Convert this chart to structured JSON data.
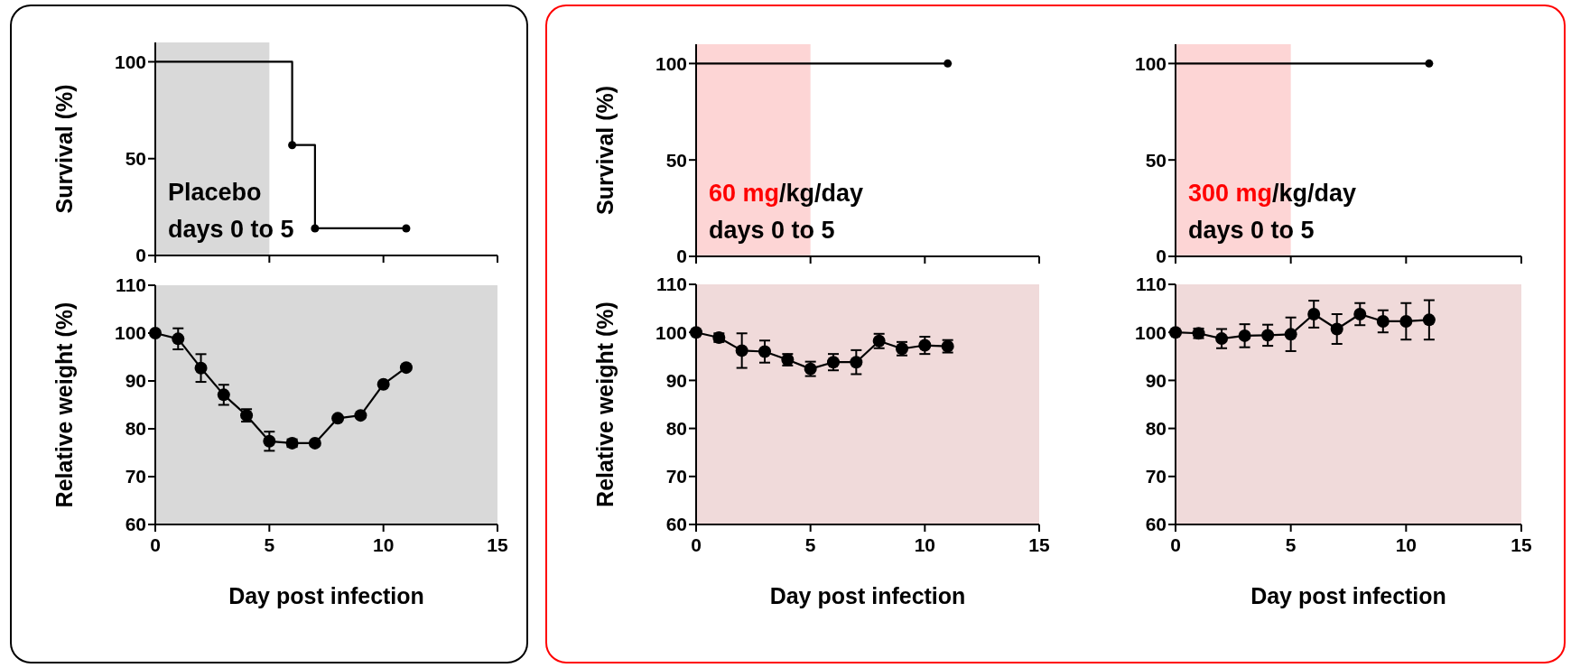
{
  "chart_data": [
    {
      "type": "step",
      "ylabel": "Survival (%)",
      "x": [
        0,
        6,
        7,
        11
      ],
      "series": [
        {
          "color": "#000000",
          "values": [
            100,
            57,
            14,
            14
          ]
        },
        {
          "type": "scatter",
          "color": "#000000",
          "x": [
            6,
            7,
            11
          ],
          "values": [
            57,
            14,
            14
          ]
        }
      ],
      "xlim": [
        0,
        15
      ],
      "xticks": [
        0,
        5,
        10,
        15
      ],
      "ylim": [
        0,
        110
      ],
      "yticks": [
        0,
        50,
        100
      ],
      "tick_labels": "y",
      "line_style": "solid",
      "bands": [
        {
          "axis": "x",
          "from": 0,
          "to": 5,
          "color": "#d9d9d9"
        }
      ],
      "annotations": [
        "Placebo",
        "days 0 to 5"
      ]
    },
    {
      "type": "step",
      "ylabel": "Survival (%)",
      "x": [
        0,
        11
      ],
      "series": [
        {
          "color": "#000000",
          "values": [
            100,
            100
          ]
        },
        {
          "type": "scatter",
          "color": "#000000",
          "x": [
            11
          ],
          "values": [
            100
          ]
        }
      ],
      "xlim": [
        0,
        15
      ],
      "xticks": [
        0,
        5,
        10,
        15
      ],
      "ylim": [
        0,
        110
      ],
      "yticks": [
        0,
        50,
        100
      ],
      "tick_labels": "y",
      "line_style": "solid",
      "bands": [
        {
          "axis": "x",
          "from": 0,
          "to": 5,
          "color": "#fdd5d5",
          "label": "60 mg"
        }
      ],
      "annotations": [
        "/kg/day",
        "days 0 to 5"
      ]
    },
    {
      "type": "step",
      "x": [
        0,
        11
      ],
      "series": [
        {
          "color": "#000000",
          "values": [
            100,
            100
          ]
        },
        {
          "type": "scatter",
          "color": "#000000",
          "x": [
            11
          ],
          "values": [
            100
          ]
        }
      ],
      "xlim": [
        0,
        15
      ],
      "xticks": [
        0,
        5,
        10,
        15
      ],
      "ylim": [
        0,
        110
      ],
      "yticks": [
        0,
        50,
        100
      ],
      "tick_labels": "y",
      "line_style": "solid",
      "bands": [
        {
          "axis": "x",
          "from": 0,
          "to": 5,
          "color": "#fdd5d5",
          "label": "300 mg"
        }
      ],
      "annotations": [
        "/kg/day",
        "days 0 to 5"
      ]
    },
    {
      "type": "line",
      "xlabel": "Day post infection",
      "ylabel": "Relative weight (%)",
      "x": [
        0,
        1,
        2,
        3,
        4,
        5,
        6,
        7,
        8,
        9,
        10,
        11
      ],
      "series": [
        {
          "color": "#000000",
          "values": [
            100,
            98.8,
            92.7,
            87.1,
            82.8,
            77.4,
            77.0,
            77.0,
            82.2,
            82.8,
            89.3,
            92.8
          ],
          "errors": [
            null,
            2.2,
            2.9,
            2.1,
            1.3,
            2.0,
            0.8,
            null,
            null,
            null,
            null,
            null
          ]
        }
      ],
      "xlim": [
        0,
        15
      ],
      "xticks": [
        0,
        5,
        10,
        15
      ],
      "ylim": [
        60,
        110
      ],
      "yticks": [
        60,
        70,
        80,
        90,
        100,
        110
      ],
      "marker": "circle",
      "line_style": "solid",
      "bands": [
        {
          "axis": "x",
          "from": 0,
          "to": 15,
          "color": "#d9d9d9"
        }
      ]
    },
    {
      "type": "line",
      "xlabel": "Day post infection",
      "ylabel": "Relative weight (%)",
      "x": [
        0,
        1,
        2,
        3,
        4,
        5,
        6,
        7,
        8,
        9,
        10,
        11
      ],
      "series": [
        {
          "color": "#000000",
          "values": [
            100,
            98.9,
            96.2,
            96.0,
            94.3,
            92.4,
            93.8,
            93.8,
            98.2,
            96.6,
            97.3,
            97.1
          ],
          "errors": [
            null,
            0.9,
            3.6,
            2.3,
            1.2,
            1.5,
            1.7,
            2.5,
            1.5,
            1.4,
            1.8,
            1.3
          ]
        }
      ],
      "xlim": [
        0,
        15
      ],
      "xticks": [
        0,
        5,
        10,
        15
      ],
      "ylim": [
        60,
        110
      ],
      "yticks": [
        60,
        70,
        80,
        90,
        100,
        110
      ],
      "marker": "circle",
      "line_style": "solid",
      "bands": [
        {
          "axis": "x",
          "from": 0,
          "to": 15,
          "color": "#f0dada"
        }
      ]
    },
    {
      "type": "line",
      "xlabel": "Day post infection",
      "x": [
        0,
        1,
        2,
        3,
        4,
        5,
        6,
        7,
        8,
        9,
        10,
        11
      ],
      "series": [
        {
          "color": "#000000",
          "values": [
            100,
            99.8,
            98.7,
            99.3,
            99.4,
            99.6,
            103.8,
            100.7,
            103.8,
            102.3,
            102.3,
            102.6
          ],
          "errors": [
            null,
            1.0,
            2.0,
            2.4,
            2.2,
            3.5,
            2.8,
            3.1,
            2.3,
            2.3,
            3.8,
            4.1
          ]
        }
      ],
      "xlim": [
        0,
        15
      ],
      "xticks": [
        0,
        5,
        10,
        15
      ],
      "ylim": [
        60,
        110
      ],
      "yticks": [
        60,
        70,
        80,
        90,
        100,
        110
      ],
      "marker": "circle",
      "line_style": "solid",
      "bands": [
        {
          "axis": "x",
          "from": 0,
          "to": 15,
          "color": "#f0dada"
        }
      ]
    }
  ]
}
